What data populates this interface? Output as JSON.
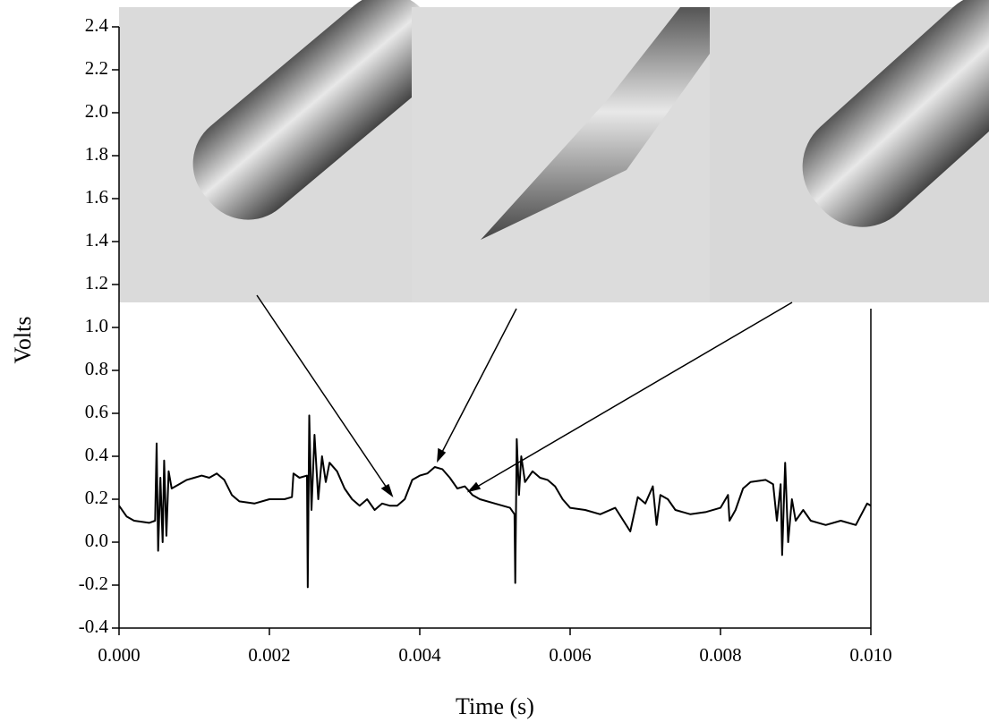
{
  "chart_data": {
    "type": "line",
    "x_label": "Time (s)",
    "y_label": "Volts",
    "xlim": [
      0,
      0.01
    ],
    "xticks": [
      {
        "value": 0,
        "label": "0.000"
      },
      0.002,
      0.004,
      0.006,
      0.008,
      {
        "value": 0.01,
        "label": "0.010"
      }
    ],
    "ylim": [
      -0.4,
      2.4
    ],
    "yticks": [
      -0.4,
      -0.2,
      {
        "value": 0,
        "label": "0.0"
      },
      0.2,
      0.4,
      0.6,
      0.8,
      {
        "value": 1,
        "label": "1.0"
      },
      1.2,
      1.4,
      1.6,
      1.8,
      {
        "value": 2,
        "label": "2.0"
      },
      2.2,
      2.4
    ],
    "grid": false,
    "series": [
      {
        "color": "#000000",
        "x": [
          0,
          0.0001,
          0.0002,
          0.0004,
          0.00048,
          0.0005,
          0.00052,
          0.00055,
          0.00058,
          0.0006,
          0.00063,
          0.00066,
          0.0007,
          0.0008,
          0.0009,
          0.001,
          0.0011,
          0.0012,
          0.0013,
          0.0014,
          0.0015,
          0.0016,
          0.0018,
          0.002,
          0.0022,
          0.0023,
          0.00232,
          0.0024,
          0.0025,
          0.00251,
          0.00253,
          0.00256,
          0.0026,
          0.00265,
          0.0027,
          0.00275,
          0.0028,
          0.0029,
          0.003,
          0.0031,
          0.0032,
          0.0033,
          0.0034,
          0.0035,
          0.0036,
          0.0037,
          0.0038,
          0.0039,
          0.004,
          0.0041,
          0.0042,
          0.0043,
          0.0044,
          0.0045,
          0.0046,
          0.0047,
          0.0048,
          0.005,
          0.0052,
          0.00526,
          0.00527,
          0.00529,
          0.00532,
          0.00535,
          0.0054,
          0.0055,
          0.0056,
          0.0057,
          0.0058,
          0.0059,
          0.006,
          0.0062,
          0.0064,
          0.0066,
          0.0068,
          0.0069,
          0.007,
          0.0071,
          0.00715,
          0.0072,
          0.0073,
          0.0074,
          0.0076,
          0.0078,
          0.008,
          0.0081,
          0.00812,
          0.0082,
          0.0083,
          0.0084,
          0.0086,
          0.0087,
          0.00875,
          0.0088,
          0.00882,
          0.00886,
          0.0089,
          0.00895,
          0.009,
          0.0091,
          0.0092,
          0.0094,
          0.0096,
          0.0098,
          0.00995,
          0.01
        ],
        "values": [
          0.17,
          0.12,
          0.1,
          0.09,
          0.1,
          0.46,
          -0.04,
          0.3,
          0,
          0.38,
          0.03,
          0.33,
          0.25,
          0.27,
          0.29,
          0.3,
          0.31,
          0.3,
          0.32,
          0.29,
          0.22,
          0.19,
          0.18,
          0.2,
          0.2,
          0.21,
          0.32,
          0.3,
          0.31,
          -0.21,
          0.59,
          0.15,
          0.5,
          0.2,
          0.4,
          0.28,
          0.37,
          0.33,
          0.25,
          0.2,
          0.17,
          0.2,
          0.15,
          0.18,
          0.17,
          0.17,
          0.2,
          0.29,
          0.31,
          0.32,
          0.35,
          0.34,
          0.3,
          0.25,
          0.26,
          0.22,
          0.2,
          0.18,
          0.16,
          0.13,
          -0.19,
          0.48,
          0.22,
          0.4,
          0.28,
          0.33,
          0.3,
          0.29,
          0.26,
          0.2,
          0.16,
          0.15,
          0.13,
          0.16,
          0.05,
          0.21,
          0.18,
          0.26,
          0.08,
          0.22,
          0.2,
          0.15,
          0.13,
          0.14,
          0.16,
          0.22,
          0.1,
          0.15,
          0.25,
          0.28,
          0.29,
          0.27,
          0.1,
          0.27,
          -0.06,
          0.37,
          0,
          0.2,
          0.1,
          0.15,
          0.1,
          0.08,
          0.1,
          0.08,
          0.18,
          0.17
        ]
      }
    ]
  }
}
